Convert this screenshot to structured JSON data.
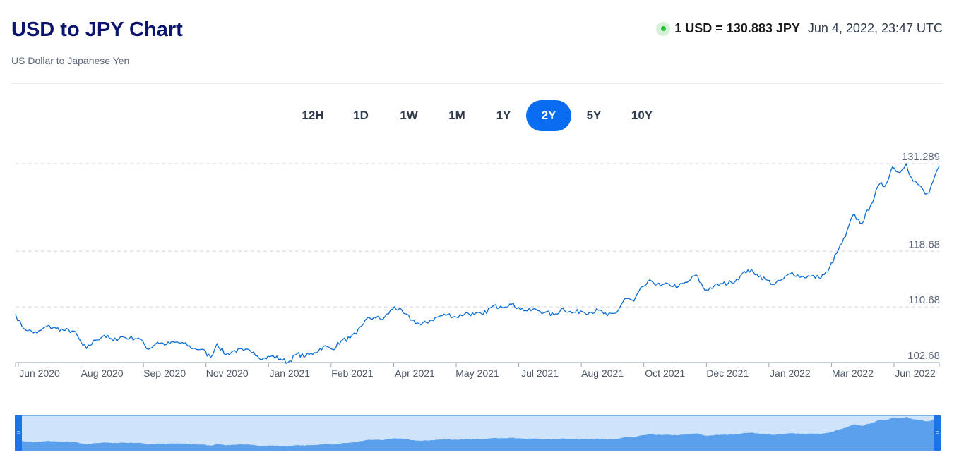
{
  "header": {
    "title": "USD to JPY Chart",
    "subtitle": "US Dollar to Japanese Yen",
    "rate": "1 USD = 130.883 JPY",
    "timestamp": "Jun 4, 2022, 23:47 UTC",
    "status_color": "#2dbd3a"
  },
  "periods": {
    "items": [
      "12H",
      "1D",
      "1W",
      "1M",
      "1Y",
      "2Y",
      "5Y",
      "10Y"
    ],
    "active": "2Y"
  },
  "colors": {
    "line": "#0a6cd4",
    "accent": "#0a6cf0",
    "navigator_area": "#5aa0ec",
    "navigator_bg": "#cfe4fa"
  },
  "chart_data": {
    "type": "line",
    "title": "",
    "xlabel": "",
    "ylabel": "",
    "x_ticks": [
      "Jun 2020",
      "Aug 2020",
      "Sep 2020",
      "Nov 2020",
      "Jan 2021",
      "Feb 2021",
      "Apr 2021",
      "May 2021",
      "Jul 2021",
      "Aug 2021",
      "Oct 2021",
      "Dec 2021",
      "Jan 2022",
      "Mar 2022",
      "Jun 2022"
    ],
    "y_ticks": [
      "131.289",
      "118.68",
      "110.68",
      "102.68"
    ],
    "ylim": [
      102.68,
      131.289
    ],
    "xlim": [
      "2020-06-05",
      "2022-06-04"
    ],
    "grid": "dashed horizontal",
    "series": [
      {
        "values": [
          [
            "2020-06-05",
            109.6
          ],
          [
            "2020-06-10",
            107.9
          ],
          [
            "2020-06-15",
            107.3
          ],
          [
            "2020-06-22",
            106.9
          ],
          [
            "2020-06-30",
            107.9
          ],
          [
            "2020-07-07",
            107.6
          ],
          [
            "2020-07-14",
            107.3
          ],
          [
            "2020-07-21",
            107.2
          ],
          [
            "2020-07-28",
            105.2
          ],
          [
            "2020-07-31",
            104.7
          ],
          [
            "2020-08-07",
            105.9
          ],
          [
            "2020-08-14",
            106.6
          ],
          [
            "2020-08-21",
            105.8
          ],
          [
            "2020-08-27",
            106.4
          ],
          [
            "2020-09-03",
            106.2
          ],
          [
            "2020-09-10",
            106.2
          ],
          [
            "2020-09-18",
            104.6
          ],
          [
            "2020-09-25",
            105.6
          ],
          [
            "2020-10-02",
            105.3
          ],
          [
            "2020-10-09",
            105.6
          ],
          [
            "2020-10-16",
            105.4
          ],
          [
            "2020-10-23",
            104.7
          ],
          [
            "2020-10-30",
            104.6
          ],
          [
            "2020-11-06",
            103.4
          ],
          [
            "2020-11-11",
            105.4
          ],
          [
            "2020-11-18",
            103.8
          ],
          [
            "2020-11-25",
            104.4
          ],
          [
            "2020-12-02",
            104.4
          ],
          [
            "2020-12-10",
            104.2
          ],
          [
            "2020-12-17",
            103.2
          ],
          [
            "2020-12-24",
            103.6
          ],
          [
            "2020-12-31",
            103.2
          ],
          [
            "2021-01-06",
            102.7
          ],
          [
            "2021-01-13",
            103.9
          ],
          [
            "2021-01-20",
            103.6
          ],
          [
            "2021-01-27",
            104.1
          ],
          [
            "2021-02-03",
            105.0
          ],
          [
            "2021-02-10",
            104.6
          ],
          [
            "2021-02-17",
            105.8
          ],
          [
            "2021-02-24",
            106.2
          ],
          [
            "2021-03-01",
            106.8
          ],
          [
            "2021-03-08",
            108.8
          ],
          [
            "2021-03-15",
            109.2
          ],
          [
            "2021-03-22",
            108.9
          ],
          [
            "2021-03-31",
            110.7
          ],
          [
            "2021-04-07",
            109.8
          ],
          [
            "2021-04-14",
            108.8
          ],
          [
            "2021-04-21",
            108.1
          ],
          [
            "2021-04-28",
            108.7
          ],
          [
            "2021-05-05",
            109.3
          ],
          [
            "2021-05-12",
            109.6
          ],
          [
            "2021-05-19",
            109.2
          ],
          [
            "2021-05-26",
            109.8
          ],
          [
            "2021-06-02",
            109.6
          ],
          [
            "2021-06-09",
            109.6
          ],
          [
            "2021-06-16",
            110.7
          ],
          [
            "2021-06-23",
            110.8
          ],
          [
            "2021-06-30",
            111.1
          ],
          [
            "2021-07-07",
            110.6
          ],
          [
            "2021-07-14",
            110.1
          ],
          [
            "2021-07-21",
            110.3
          ],
          [
            "2021-07-28",
            109.9
          ],
          [
            "2021-08-04",
            109.5
          ],
          [
            "2021-08-11",
            110.5
          ],
          [
            "2021-08-18",
            109.8
          ],
          [
            "2021-08-25",
            110.1
          ],
          [
            "2021-09-01",
            109.9
          ],
          [
            "2021-09-08",
            110.2
          ],
          [
            "2021-09-15",
            109.4
          ],
          [
            "2021-09-22",
            109.8
          ],
          [
            "2021-09-29",
            111.9
          ],
          [
            "2021-10-06",
            111.5
          ],
          [
            "2021-10-13",
            113.6
          ],
          [
            "2021-10-20",
            114.4
          ],
          [
            "2021-10-27",
            113.7
          ],
          [
            "2021-11-03",
            113.9
          ],
          [
            "2021-11-10",
            113.6
          ],
          [
            "2021-11-17",
            114.2
          ],
          [
            "2021-11-24",
            115.3
          ],
          [
            "2021-12-01",
            113.1
          ],
          [
            "2021-12-08",
            113.6
          ],
          [
            "2021-12-15",
            114.0
          ],
          [
            "2021-12-22",
            114.2
          ],
          [
            "2021-12-29",
            115.1
          ],
          [
            "2022-01-04",
            116.0
          ],
          [
            "2022-01-11",
            115.4
          ],
          [
            "2022-01-18",
            114.6
          ],
          [
            "2022-01-25",
            113.9
          ],
          [
            "2022-02-01",
            114.7
          ],
          [
            "2022-02-08",
            115.6
          ],
          [
            "2022-02-15",
            115.0
          ],
          [
            "2022-02-22",
            115.1
          ],
          [
            "2022-03-01",
            114.9
          ],
          [
            "2022-03-08",
            115.7
          ],
          [
            "2022-03-15",
            118.4
          ],
          [
            "2022-03-22",
            120.8
          ],
          [
            "2022-03-28",
            123.9
          ],
          [
            "2022-04-04",
            122.7
          ],
          [
            "2022-04-11",
            125.4
          ],
          [
            "2022-04-18",
            128.4
          ],
          [
            "2022-04-22",
            128.0
          ],
          [
            "2022-04-28",
            130.8
          ],
          [
            "2022-05-04",
            130.0
          ],
          [
            "2022-05-09",
            131.3
          ],
          [
            "2022-05-13",
            129.3
          ],
          [
            "2022-05-19",
            128.2
          ],
          [
            "2022-05-24",
            126.9
          ],
          [
            "2022-05-27",
            127.1
          ],
          [
            "2022-06-01",
            129.8
          ],
          [
            "2022-06-04",
            130.9
          ]
        ]
      }
    ]
  }
}
